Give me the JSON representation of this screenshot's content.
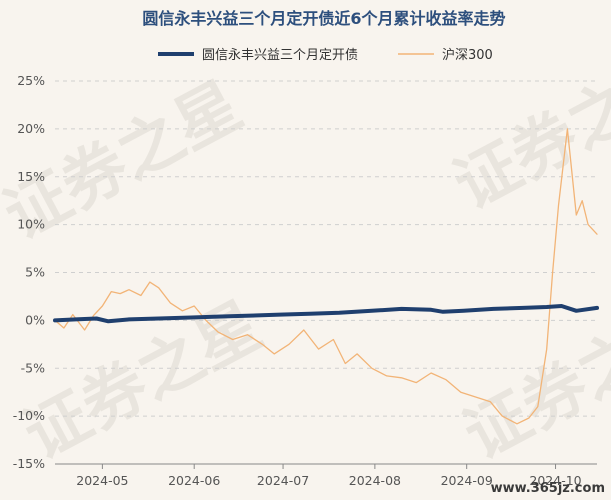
{
  "chart_data": {
    "type": "line",
    "title": "圆信永丰兴益三个月定开债近6个月累计收益率走势",
    "xlabel": "",
    "ylabel": "",
    "ylim": [
      -15,
      25
    ],
    "yticks": [
      -15,
      -10,
      -5,
      0,
      5,
      10,
      15,
      20,
      25
    ],
    "ytick_labels": [
      "-15%",
      "-10%",
      "-5%",
      "0%",
      "5%",
      "10%",
      "15%",
      "20%",
      "25%"
    ],
    "x_range": [
      "2024-04-15",
      "2024-10-15"
    ],
    "xticks": [
      "2024-05-01",
      "2024-06-01",
      "2024-07-01",
      "2024-08-01",
      "2024-09-01",
      "2024-10-01"
    ],
    "xtick_labels": [
      "2024-05",
      "2024-06",
      "2024-07",
      "2024-08",
      "2024-09",
      "2024-10"
    ],
    "grid": true,
    "legend_position": "top",
    "series": [
      {
        "name": "圆信永丰兴益三个月定开债",
        "color": "#1f3f6e",
        "x": [
          "2024-04-15",
          "2024-04-22",
          "2024-04-29",
          "2024-05-03",
          "2024-05-10",
          "2024-05-20",
          "2024-05-31",
          "2024-06-10",
          "2024-06-20",
          "2024-06-30",
          "2024-07-10",
          "2024-07-20",
          "2024-07-31",
          "2024-08-10",
          "2024-08-20",
          "2024-08-24",
          "2024-08-31",
          "2024-09-10",
          "2024-09-20",
          "2024-09-28",
          "2024-10-03",
          "2024-10-08",
          "2024-10-15"
        ],
        "values": [
          0.0,
          0.1,
          0.2,
          -0.1,
          0.1,
          0.2,
          0.3,
          0.4,
          0.5,
          0.6,
          0.7,
          0.8,
          1.0,
          1.2,
          1.1,
          0.9,
          1.0,
          1.2,
          1.3,
          1.4,
          1.5,
          1.0,
          1.3
        ]
      },
      {
        "name": "沪深300",
        "color": "#f2b477",
        "x": [
          "2024-04-15",
          "2024-04-18",
          "2024-04-21",
          "2024-04-25",
          "2024-04-28",
          "2024-05-01",
          "2024-05-04",
          "2024-05-07",
          "2024-05-10",
          "2024-05-14",
          "2024-05-17",
          "2024-05-20",
          "2024-05-24",
          "2024-05-28",
          "2024-06-01",
          "2024-06-05",
          "2024-06-09",
          "2024-06-14",
          "2024-06-19",
          "2024-06-24",
          "2024-06-28",
          "2024-07-03",
          "2024-07-08",
          "2024-07-13",
          "2024-07-18",
          "2024-07-22",
          "2024-07-26",
          "2024-07-31",
          "2024-08-05",
          "2024-08-10",
          "2024-08-15",
          "2024-08-20",
          "2024-08-25",
          "2024-08-30",
          "2024-09-04",
          "2024-09-09",
          "2024-09-13",
          "2024-09-18",
          "2024-09-22",
          "2024-09-25",
          "2024-09-28",
          "2024-09-30",
          "2024-10-02",
          "2024-10-05",
          "2024-10-08",
          "2024-10-10",
          "2024-10-12",
          "2024-10-15"
        ],
        "values": [
          0.0,
          -0.8,
          0.6,
          -1.0,
          0.5,
          1.5,
          3.0,
          2.8,
          3.2,
          2.6,
          4.0,
          3.4,
          1.8,
          1.0,
          1.5,
          0.0,
          -1.2,
          -2.0,
          -1.5,
          -2.5,
          -3.5,
          -2.5,
          -1.0,
          -3.0,
          -2.0,
          -4.5,
          -3.5,
          -5.0,
          -5.8,
          -6.0,
          -6.5,
          -5.5,
          -6.2,
          -7.5,
          -8.0,
          -8.5,
          -10.0,
          -10.8,
          -10.2,
          -9.0,
          -3.0,
          5.0,
          12.0,
          20.0,
          11.0,
          12.5,
          10.0,
          9.0
        ]
      }
    ]
  },
  "watermark": {
    "text": "证券之星",
    "url": "www.365jz.com"
  }
}
